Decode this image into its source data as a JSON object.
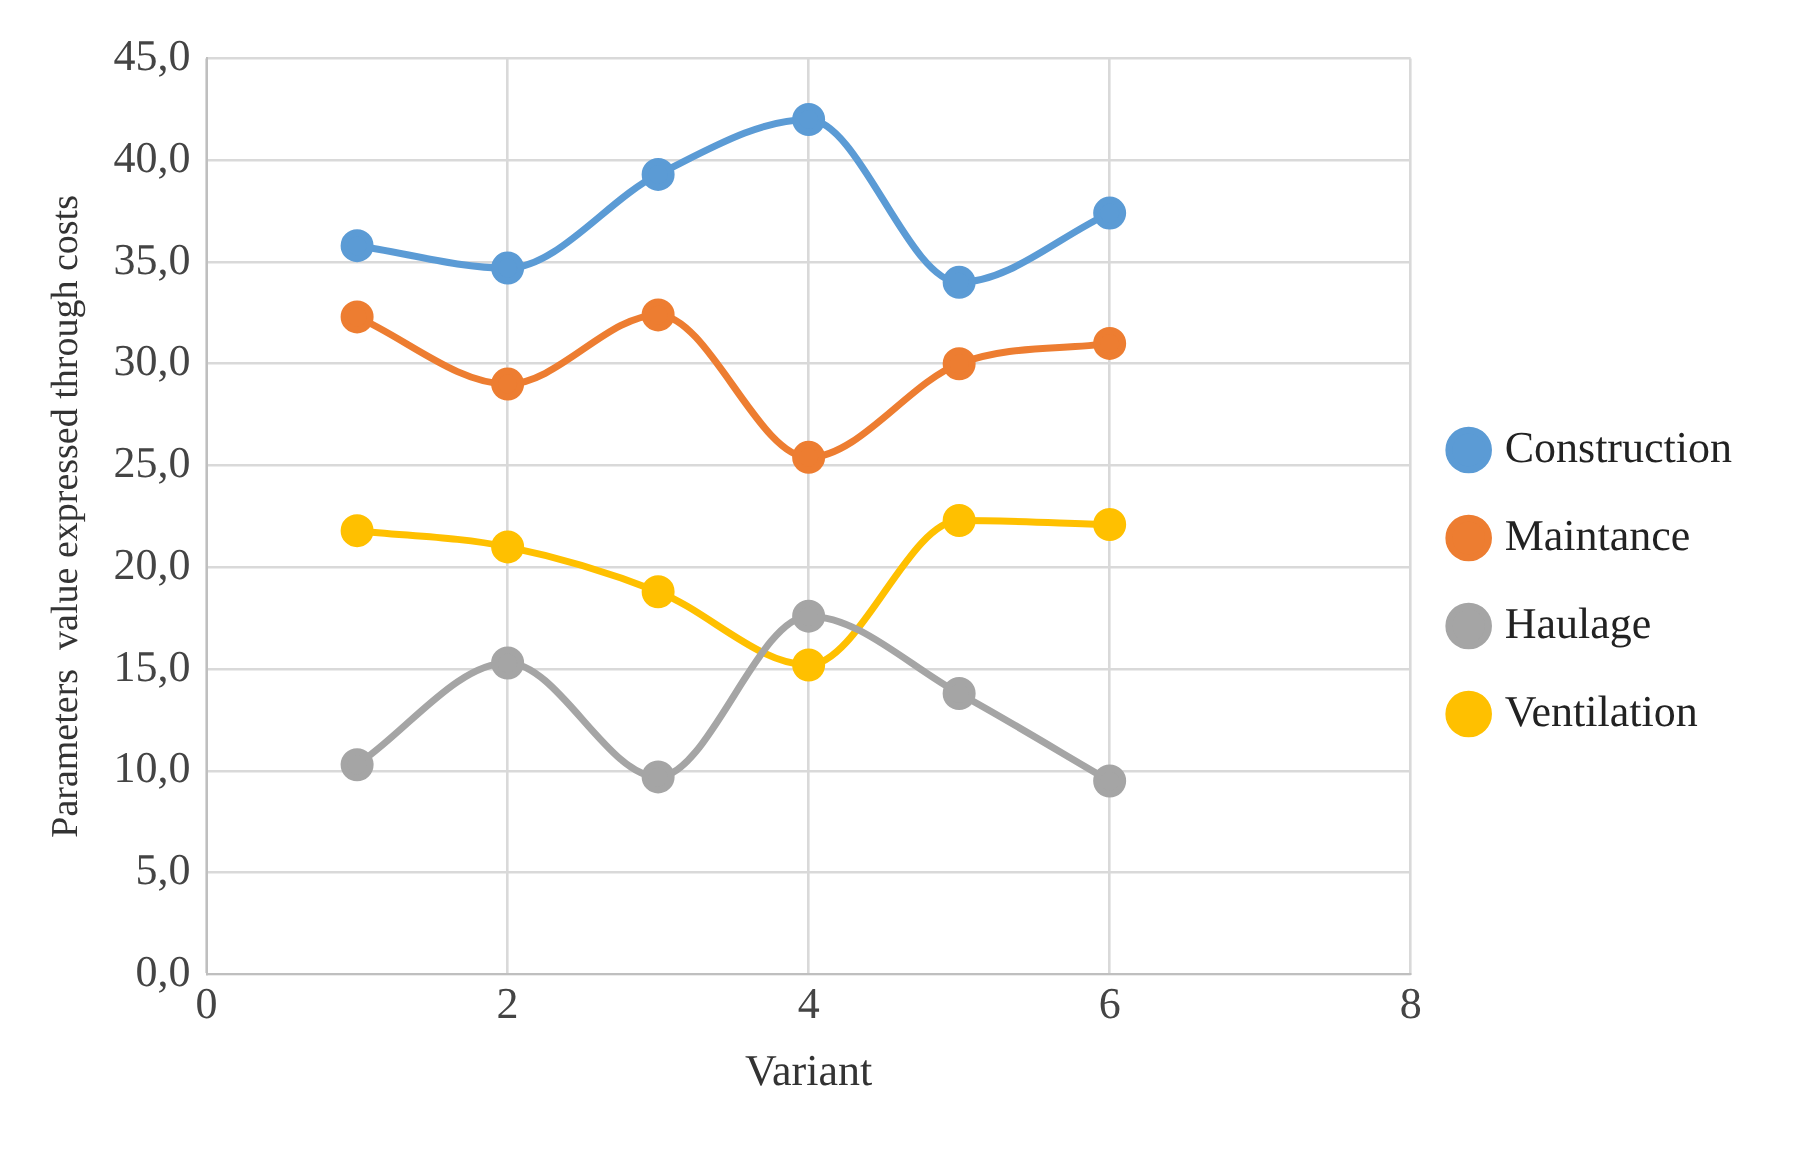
{
  "chart_data": {
    "type": "line",
    "xlabel": "Variant",
    "ylabel": "Parameters  value expressed through costs",
    "x": [
      1,
      2,
      3,
      4,
      5,
      6
    ],
    "series": [
      {
        "name": "Construction",
        "color": "#5b9bd5",
        "values": [
          35.8,
          34.7,
          39.3,
          42.0,
          34.0,
          37.4
        ]
      },
      {
        "name": "Maintance",
        "color": "#ed7d31",
        "values": [
          32.3,
          29.0,
          32.4,
          25.4,
          30.0,
          31.0
        ]
      },
      {
        "name": "Haulage",
        "color": "#a5a5a5",
        "values": [
          10.3,
          15.3,
          9.7,
          17.6,
          13.8,
          9.5
        ]
      },
      {
        "name": "Ventilation",
        "color": "#ffc000",
        "values": [
          21.8,
          21.0,
          18.8,
          15.2,
          22.3,
          22.1
        ]
      }
    ],
    "xlim": [
      0,
      8
    ],
    "xticks": [
      0,
      2,
      4,
      6,
      8
    ],
    "ylim": [
      0,
      45
    ],
    "yticks": [
      {
        "value": 0,
        "label": "0,0"
      },
      {
        "value": 5,
        "label": "5,0"
      },
      {
        "value": 10,
        "label": "10,0"
      },
      {
        "value": 15,
        "label": "15,0"
      },
      {
        "value": 20,
        "label": "20,0"
      },
      {
        "value": 25,
        "label": "25,0"
      },
      {
        "value": 30,
        "label": "30,0"
      },
      {
        "value": 35,
        "label": "35,0"
      },
      {
        "value": 40,
        "label": "40,0"
      },
      {
        "value": 45,
        "label": "45,0"
      }
    ],
    "grid": true,
    "legend": "right",
    "marker": "circle",
    "line_style": "solid"
  }
}
